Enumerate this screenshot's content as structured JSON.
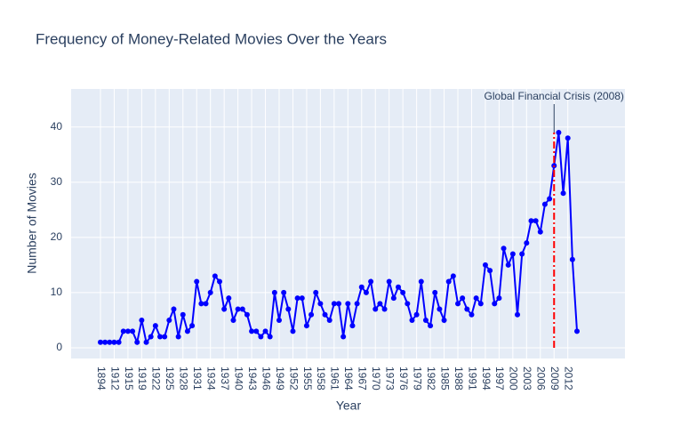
{
  "chart_data": {
    "type": "line",
    "title": "Frequency of Money-Related Movies Over the Years",
    "x_label": "Year",
    "y_label": "Number of Movies",
    "categories": [
      "1894",
      null,
      null,
      "1912",
      null,
      null,
      "1915",
      null,
      null,
      "1919",
      null,
      null,
      "1922",
      null,
      null,
      "1925",
      null,
      null,
      "1928",
      null,
      null,
      "1931",
      null,
      null,
      "1934",
      null,
      null,
      "1937",
      null,
      null,
      "1940",
      null,
      null,
      "1943",
      null,
      null,
      "1946",
      null,
      null,
      "1949",
      null,
      null,
      "1952",
      null,
      null,
      "1955",
      null,
      null,
      "1958",
      null,
      null,
      "1961",
      null,
      null,
      "1964",
      null,
      null,
      "1967",
      null,
      null,
      "1970",
      null,
      null,
      "1973",
      null,
      null,
      "1976",
      null,
      null,
      "1979",
      null,
      null,
      "1982",
      null,
      null,
      "1985",
      null,
      null,
      "1988",
      null,
      null,
      "1991",
      null,
      null,
      "1994",
      null,
      null,
      "1997",
      null,
      null,
      "2000",
      null,
      null,
      "2003",
      null,
      null,
      "2006",
      null,
      null,
      "2009",
      null,
      null,
      "2012",
      null,
      null
    ],
    "series": [
      {
        "name": "Number of Movies",
        "color": "#0000ff",
        "values": [
          1,
          1,
          1,
          1,
          1,
          3,
          3,
          3,
          1,
          5,
          1,
          2,
          4,
          2,
          2,
          5,
          7,
          2,
          6,
          3,
          4,
          12,
          8,
          8,
          10,
          13,
          12,
          7,
          9,
          5,
          7,
          7,
          6,
          3,
          3,
          2,
          3,
          2,
          10,
          5,
          10,
          7,
          3,
          9,
          9,
          4,
          6,
          10,
          8,
          6,
          5,
          8,
          8,
          2,
          8,
          4,
          8,
          11,
          10,
          12,
          7,
          8,
          7,
          12,
          9,
          11,
          10,
          8,
          5,
          6,
          12,
          5,
          4,
          10,
          7,
          5,
          12,
          13,
          8,
          9,
          7,
          6,
          9,
          8,
          15,
          14,
          8,
          9,
          18,
          15,
          17,
          6,
          17,
          19,
          23,
          23,
          21,
          26,
          27,
          33,
          39,
          28,
          38,
          16,
          3
        ]
      }
    ],
    "ylim": [
      -1.94,
      46.9
    ],
    "yticks": [
      0,
      10,
      20,
      30,
      40
    ],
    "grid": true,
    "annotation": "Global Financial Crisis (2008)",
    "annotation_color": "#ff0000"
  }
}
